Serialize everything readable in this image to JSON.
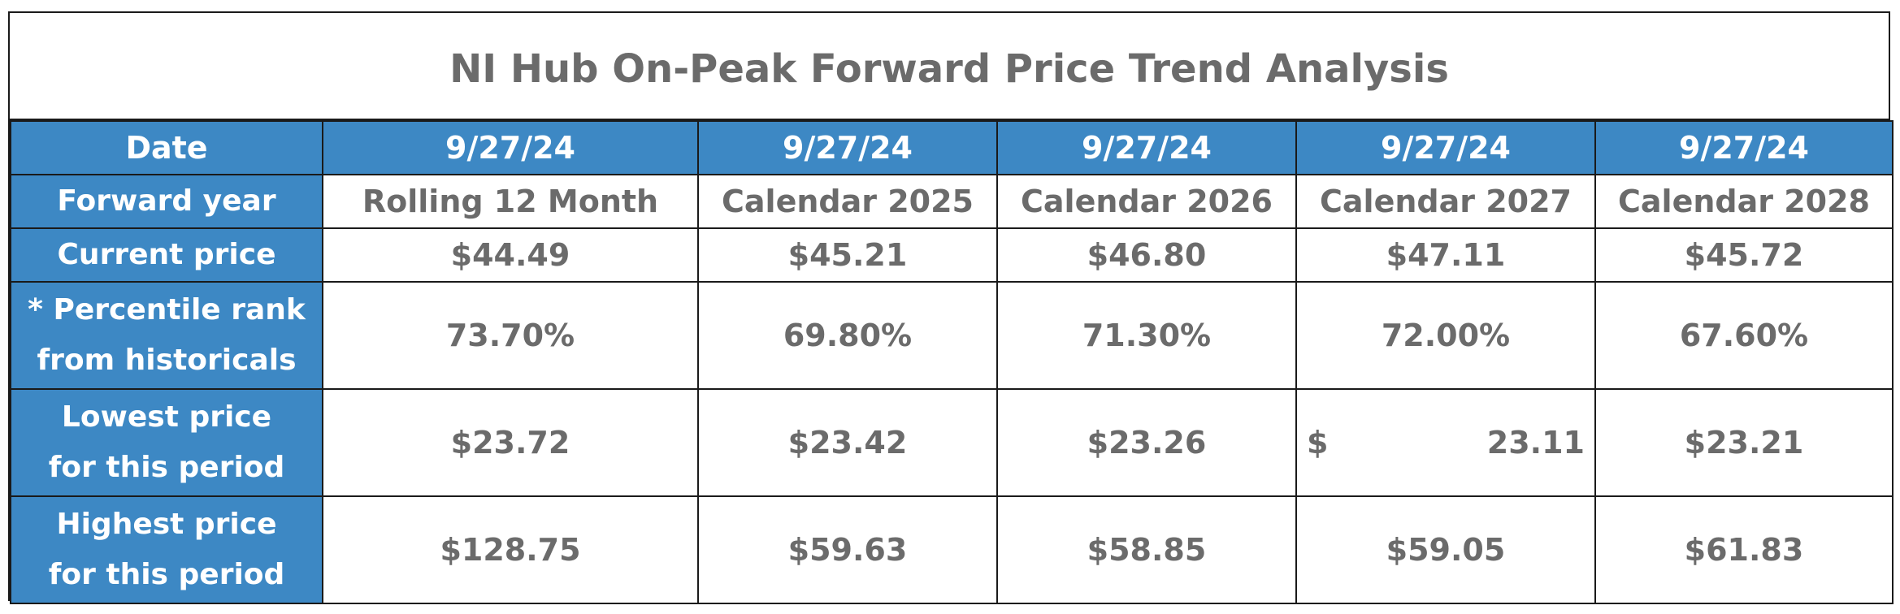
{
  "title": "NI Hub On-Peak Forward Price Trend Analysis",
  "table": {
    "date_label": "Date",
    "dates": [
      "9/27/24",
      "9/27/24",
      "9/27/24",
      "9/27/24",
      "9/27/24"
    ],
    "rows": [
      {
        "label_lines": [
          "Forward year"
        ],
        "values": [
          "Rolling 12 Month",
          "Calendar 2025",
          "Calendar 2026",
          "Calendar 2027",
          "Calendar 2028"
        ]
      },
      {
        "label_lines": [
          "Current price"
        ],
        "values": [
          "$44.49",
          "$45.21",
          "$46.80",
          "$47.11",
          "$45.72"
        ]
      },
      {
        "label_lines": [
          "* Percentile rank",
          "from historicals"
        ],
        "values": [
          "73.70%",
          "69.80%",
          "71.30%",
          "72.00%",
          "67.60%"
        ]
      },
      {
        "label_lines": [
          "Lowest price",
          "for this period"
        ],
        "values": [
          "$23.72",
          "$23.42",
          "$23.26",
          "23.11",
          "$23.21"
        ],
        "split_currency_symbol": "$"
      },
      {
        "label_lines": [
          "Highest price",
          "for this period"
        ],
        "values": [
          "$128.75",
          "$59.63",
          "$58.85",
          "$59.05",
          "$61.83"
        ]
      }
    ]
  },
  "colors": {
    "header_blue": "#3d88c4",
    "text_gray": "#6b6b6b",
    "border": "#1a1a1a"
  }
}
